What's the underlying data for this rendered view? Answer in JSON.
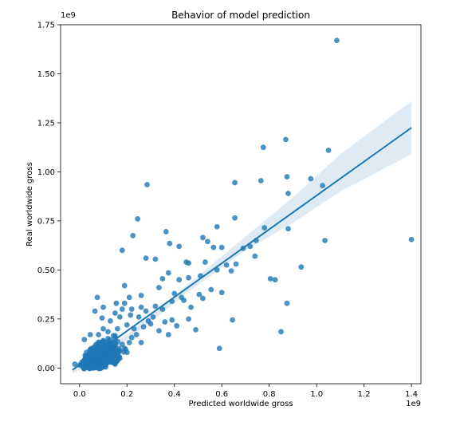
{
  "chart_data": {
    "type": "scatter",
    "title": "Behavior of model prediction",
    "xlabel": "Predicted worldwide gross",
    "ylabel": "Real worldwide gross",
    "x_offset_label": "1e9",
    "y_offset_label": "1e9",
    "xlim": [
      -0.08,
      1.44
    ],
    "ylim": [
      -0.08,
      1.75
    ],
    "x_ticks": [
      0.0,
      0.2,
      0.4,
      0.6,
      0.8,
      1.0,
      1.2,
      1.4
    ],
    "x_tick_labels": [
      "0.0",
      "0.2",
      "0.4",
      "0.6",
      "0.8",
      "1.0",
      "1.2",
      "1.4"
    ],
    "y_ticks": [
      0.0,
      0.25,
      0.5,
      0.75,
      1.0,
      1.25,
      1.5,
      1.75
    ],
    "y_tick_labels": [
      "0.00",
      "0.25",
      "0.50",
      "0.75",
      "1.00",
      "1.25",
      "1.50",
      "1.75"
    ],
    "grid": false,
    "point_color": "#1f77b4",
    "point_opacity": 0.8,
    "regression": {
      "color": "#1f77b4",
      "band_color": "#1f77b4",
      "band_opacity": 0.15,
      "line": [
        [
          -0.03,
          -0.01
        ],
        [
          1.4,
          1.225
        ]
      ],
      "ci_upper": [
        [
          -0.03,
          0.005
        ],
        [
          0.2,
          0.17
        ],
        [
          0.45,
          0.42
        ],
        [
          0.7,
          0.67
        ],
        [
          0.9,
          0.87
        ],
        [
          1.1,
          1.09
        ],
        [
          1.4,
          1.36
        ]
      ],
      "ci_lower": [
        [
          -0.03,
          -0.03
        ],
        [
          0.2,
          0.14
        ],
        [
          0.45,
          0.38
        ],
        [
          0.7,
          0.6
        ],
        [
          0.9,
          0.74
        ],
        [
          1.1,
          0.9
        ],
        [
          1.4,
          1.09
        ]
      ]
    },
    "points": [
      [
        1.085,
        1.67
      ],
      [
        1.4,
        0.655
      ],
      [
        1.05,
        1.11
      ],
      [
        0.87,
        1.165
      ],
      [
        0.775,
        1.125
      ],
      [
        0.975,
        0.965
      ],
      [
        0.655,
        0.945
      ],
      [
        0.765,
        0.955
      ],
      [
        0.875,
        0.975
      ],
      [
        1.025,
        0.93
      ],
      [
        0.285,
        0.935
      ],
      [
        0.88,
        0.89
      ],
      [
        0.655,
        0.765
      ],
      [
        0.245,
        0.76
      ],
      [
        0.58,
        0.72
      ],
      [
        0.78,
        0.715
      ],
      [
        0.88,
        0.71
      ],
      [
        0.365,
        0.695
      ],
      [
        0.225,
        0.675
      ],
      [
        0.52,
        0.665
      ],
      [
        0.54,
        0.645
      ],
      [
        0.745,
        0.65
      ],
      [
        0.38,
        0.635
      ],
      [
        0.42,
        0.62
      ],
      [
        1.035,
        0.65
      ],
      [
        0.565,
        0.615
      ],
      [
        0.6,
        0.615
      ],
      [
        0.69,
        0.61
      ],
      [
        0.72,
        0.62
      ],
      [
        0.18,
        0.6
      ],
      [
        0.74,
        0.57
      ],
      [
        0.28,
        0.56
      ],
      [
        0.32,
        0.555
      ],
      [
        0.45,
        0.54
      ],
      [
        0.46,
        0.535
      ],
      [
        0.53,
        0.54
      ],
      [
        0.62,
        0.525
      ],
      [
        0.66,
        0.53
      ],
      [
        0.935,
        0.515
      ],
      [
        0.58,
        0.5
      ],
      [
        0.64,
        0.495
      ],
      [
        0.375,
        0.485
      ],
      [
        0.805,
        0.455
      ],
      [
        0.825,
        0.45
      ],
      [
        0.51,
        0.47
      ],
      [
        0.46,
        0.46
      ],
      [
        0.35,
        0.455
      ],
      [
        0.42,
        0.45
      ],
      [
        0.19,
        0.42
      ],
      [
        0.335,
        0.41
      ],
      [
        0.555,
        0.4
      ],
      [
        0.6,
        0.385
      ],
      [
        0.4,
        0.38
      ],
      [
        0.43,
        0.36
      ],
      [
        0.505,
        0.375
      ],
      [
        0.26,
        0.37
      ],
      [
        0.075,
        0.36
      ],
      [
        0.21,
        0.36
      ],
      [
        0.44,
        0.345
      ],
      [
        0.52,
        0.355
      ],
      [
        0.39,
        0.34
      ],
      [
        0.155,
        0.33
      ],
      [
        0.875,
        0.33
      ],
      [
        0.32,
        0.315
      ],
      [
        0.47,
        0.31
      ],
      [
        0.35,
        0.3
      ],
      [
        0.18,
        0.3
      ],
      [
        0.065,
        0.29
      ],
      [
        0.28,
        0.29
      ],
      [
        0.215,
        0.27
      ],
      [
        0.095,
        0.255
      ],
      [
        0.645,
        0.245
      ],
      [
        0.39,
        0.245
      ],
      [
        0.36,
        0.235
      ],
      [
        0.46,
        0.25
      ],
      [
        0.3,
        0.225
      ],
      [
        0.41,
        0.215
      ],
      [
        0.49,
        0.195
      ],
      [
        0.335,
        0.19
      ],
      [
        0.85,
        0.185
      ],
      [
        0.12,
        0.185
      ],
      [
        0.375,
        0.17
      ],
      [
        0.22,
        0.155
      ],
      [
        0.26,
        0.13
      ],
      [
        0.59,
        0.1
      ],
      [
        0.045,
        0.17
      ],
      [
        0.02,
        0.145
      ],
      [
        0.1,
        0.14
      ],
      [
        0.15,
        0.15
      ],
      [
        0.07,
        0.12
      ],
      [
        0.13,
        0.11
      ],
      [
        0.18,
        0.12
      ],
      [
        0.05,
        0.1
      ],
      [
        0.09,
        0.09
      ],
      [
        0.11,
        0.08
      ],
      [
        0.16,
        0.09
      ],
      [
        0.03,
        0.08
      ],
      [
        0.06,
        0.07
      ],
      [
        0.14,
        0.06
      ],
      [
        0.2,
        0.08
      ],
      [
        0.08,
        0.05
      ],
      [
        0.12,
        0.04
      ],
      [
        0.04,
        0.04
      ],
      [
        0.17,
        0.05
      ],
      [
        0.01,
        0.03
      ],
      [
        0.07,
        0.02
      ],
      [
        0.1,
        0.02
      ],
      [
        0.13,
        0.03
      ],
      [
        0.03,
        0.01
      ],
      [
        0.06,
        0.0
      ],
      [
        0.09,
        0.01
      ],
      [
        0.15,
        0.02
      ],
      [
        0.02,
        0.0
      ],
      [
        0.05,
        0.0
      ],
      [
        -0.02,
        0.02
      ],
      [
        0.0,
        0.015
      ],
      [
        0.11,
        0.005
      ],
      [
        0.08,
        0.0
      ],
      [
        0.025,
        0.055
      ],
      [
        0.14,
        0.1
      ],
      [
        0.19,
        0.1
      ],
      [
        0.21,
        0.13
      ],
      [
        0.24,
        0.17
      ],
      [
        0.23,
        0.2
      ],
      [
        0.27,
        0.21
      ],
      [
        0.29,
        0.24
      ],
      [
        0.31,
        0.26
      ],
      [
        0.25,
        0.26
      ],
      [
        0.2,
        0.22
      ],
      [
        0.16,
        0.2
      ],
      [
        0.12,
        0.15
      ],
      [
        0.1,
        0.2
      ],
      [
        0.08,
        0.17
      ],
      [
        0.13,
        0.24
      ],
      [
        0.17,
        0.26
      ],
      [
        0.22,
        0.3
      ],
      [
        0.26,
        0.31
      ],
      [
        0.15,
        0.28
      ],
      [
        0.19,
        0.33
      ],
      [
        0.1,
        0.31
      ]
    ],
    "cluster": {
      "center": [
        0.09,
        0.06
      ],
      "spread_x": 0.08,
      "spread_y": 0.06,
      "count": 420
    }
  }
}
